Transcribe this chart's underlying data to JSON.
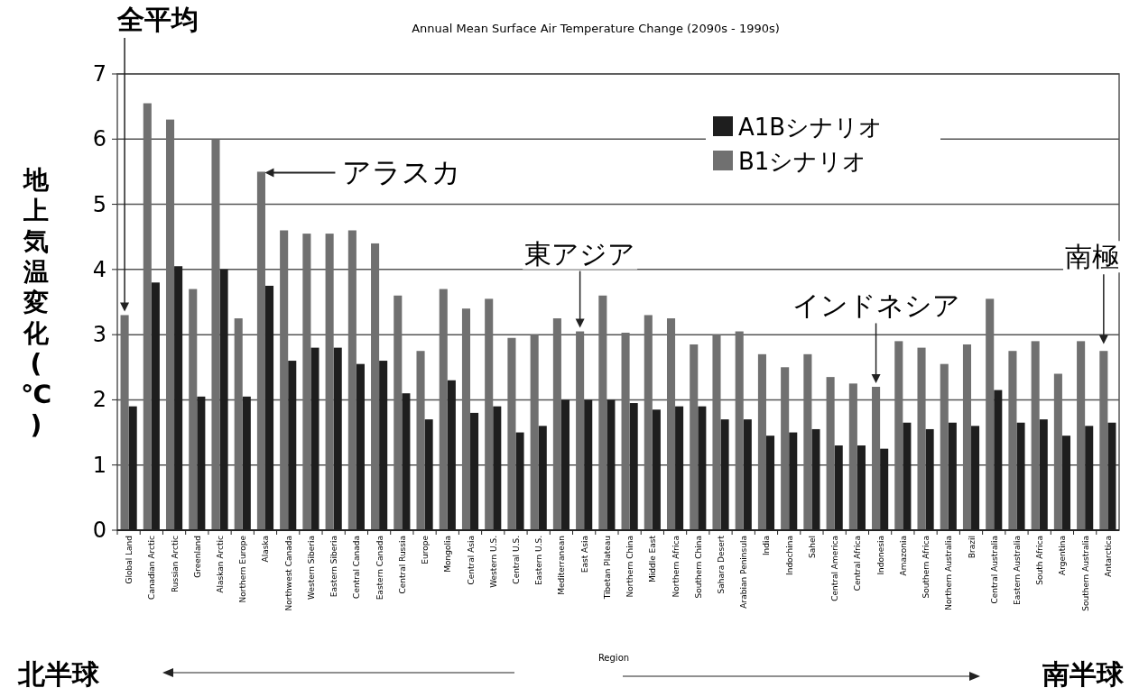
{
  "chart_data": {
    "type": "bar",
    "title": "Annual Mean Surface Air Temperature Change (2090s - 1990s)",
    "xlabel": "Region",
    "ylabel": "地上気温変化(℃)",
    "categories": [
      "Global Land",
      "Canadian Arctic",
      "Russian Arctic",
      "Greenland",
      "Alaskan Arctic",
      "Northern Europe",
      "Alaska",
      "Northwest Canada",
      "Western Siberia",
      "Eastern Siberia",
      "Central Canada",
      "Eastern Canada",
      "Central Russia",
      "Europe",
      "Mongolia",
      "Central Asia",
      "Western U.S.",
      "Central U.S.",
      "Eastern U.S.",
      "Mediterranean",
      "East Asia",
      "Tibetan Plateau",
      "Northern China",
      "Middle East",
      "Northern Africa",
      "Southern China",
      "Sahara Desert",
      "Arabian Peninsula",
      "India",
      "Indochina",
      "Sahel",
      "Central America",
      "Central Africa",
      "Indonesia",
      "Amazonia",
      "Southern Africa",
      "Northern Australia",
      "Brazil",
      "Central Australia",
      "Eastern Australia",
      "South Africa",
      "Argentina",
      "Southern Australia",
      "Antarctica"
    ],
    "series": [
      {
        "name": "A1Bシナリオ",
        "color": "#1e1e1e",
        "values": [
          1.9,
          3.8,
          4.05,
          2.05,
          4.0,
          2.05,
          3.75,
          2.6,
          2.8,
          2.8,
          2.55,
          2.6,
          2.1,
          1.7,
          2.3,
          1.8,
          1.9,
          1.5,
          1.6,
          2.0,
          2.0,
          2.0,
          1.95,
          1.85,
          1.9,
          1.9,
          1.7,
          1.7,
          1.45,
          1.5,
          1.55,
          1.3,
          1.3,
          1.25,
          1.65,
          1.55,
          1.65,
          1.6,
          2.15,
          1.65,
          1.7,
          1.45,
          1.6,
          1.65
        ]
      },
      {
        "name": "B1シナリオ",
        "color": "#707070",
        "values": [
          3.3,
          6.55,
          6.3,
          3.7,
          6.0,
          3.25,
          5.5,
          4.6,
          4.55,
          4.55,
          4.6,
          4.4,
          3.6,
          2.75,
          3.7,
          3.4,
          3.55,
          2.95,
          3.0,
          3.25,
          3.05,
          3.6,
          3.03,
          3.3,
          3.25,
          2.85,
          3.0,
          3.05,
          2.7,
          2.5,
          2.7,
          2.35,
          2.25,
          2.2,
          2.9,
          2.8,
          2.55,
          2.85,
          3.55,
          2.75,
          2.9,
          2.4,
          2.9,
          2.75
        ]
      }
    ],
    "ylim": [
      0,
      7
    ],
    "yticks": [
      0,
      1,
      2,
      3,
      4,
      5,
      6,
      7
    ],
    "grid": "y",
    "legend": "top right",
    "annotations": [
      "全平均",
      {
        "text": "アラスカ",
        "x": "Alaska",
        "y": 5.5
      },
      {
        "text": "東アジア",
        "x": "East Asia",
        "y": 3.05
      },
      {
        "text": "インドネシア",
        "x": "Indonesia",
        "y": 2.2
      },
      {
        "text": "南極",
        "x": "Antarctica",
        "y": 2.8
      },
      "北半球",
      "南半球"
    ]
  }
}
